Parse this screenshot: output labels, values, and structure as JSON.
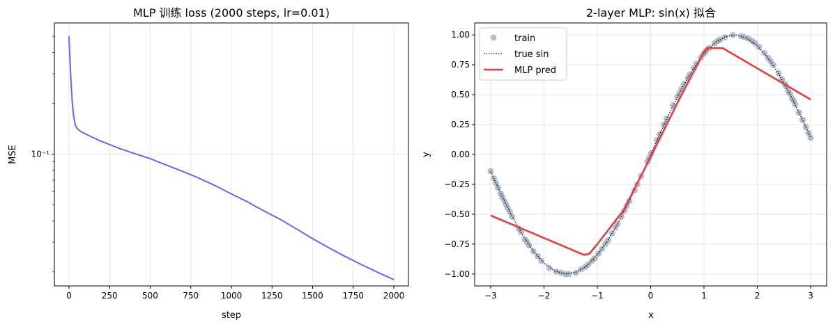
{
  "chart_data": [
    {
      "type": "line",
      "title": "MLP 训练 loss (2000 steps, lr=0.01)",
      "xlabel": "step",
      "ylabel": "MSE",
      "yscale": "log",
      "xlim": [
        -90,
        2090
      ],
      "ylim": [
        0.0165,
        0.6
      ],
      "xticks": [
        0,
        250,
        500,
        750,
        1000,
        1250,
        1500,
        1750,
        2000
      ],
      "ytick_labels": [
        {
          "value": 0.1,
          "label": "10⁻¹"
        }
      ],
      "grid": true,
      "color": "#6366f1",
      "series": [
        {
          "x": [
            0,
            5,
            10,
            15,
            20,
            25,
            30,
            35,
            40,
            50,
            60,
            70,
            80,
            100,
            150,
            200,
            250,
            300,
            400,
            500,
            600,
            700,
            800,
            900,
            1000,
            1100,
            1200,
            1300,
            1400,
            1500,
            1600,
            1700,
            1800,
            1900,
            2000
          ],
          "y": [
            0.5,
            0.38,
            0.3,
            0.245,
            0.205,
            0.18,
            0.165,
            0.155,
            0.148,
            0.142,
            0.139,
            0.137,
            0.135,
            0.132,
            0.125,
            0.119,
            0.114,
            0.109,
            0.101,
            0.094,
            0.086,
            0.079,
            0.072,
            0.065,
            0.058,
            0.052,
            0.046,
            0.041,
            0.036,
            0.0315,
            0.0278,
            0.0247,
            0.0221,
            0.0199,
            0.018
          ]
        }
      ]
    },
    {
      "type": "scatter+line",
      "title": "2-layer MLP: sin(x) 拟合",
      "xlabel": "x",
      "ylabel": "y",
      "xlim": [
        -3.3,
        3.3
      ],
      "ylim": [
        -1.1,
        1.1
      ],
      "xticks": [
        -3,
        -2,
        -1,
        0,
        1,
        2,
        3
      ],
      "yticks": [
        -1.0,
        -0.75,
        -0.5,
        -0.25,
        0.0,
        0.25,
        0.5,
        0.75,
        1.0
      ],
      "grid": true,
      "legend_position": "upper-left",
      "series": [
        {
          "name": "train",
          "kind": "scatter",
          "color": "#94a3b8",
          "x": [
            -3.0,
            -2.94,
            -2.9,
            -2.86,
            -2.81,
            -2.78,
            -2.74,
            -2.71,
            -2.68,
            -2.64,
            -2.6,
            -2.47,
            -2.43,
            -2.36,
            -2.32,
            -2.28,
            -2.2,
            -2.12,
            -2.05,
            -1.9,
            -1.77,
            -1.68,
            -1.6,
            -1.53,
            -1.4,
            -1.3,
            -1.22,
            -1.17,
            -1.1,
            -1.05,
            -0.98,
            -0.91,
            -0.85,
            -0.8,
            -0.72,
            -0.66,
            -0.62,
            -0.55,
            -0.49,
            -0.45,
            -0.4,
            -0.3,
            -0.25,
            -0.18,
            -0.06,
            -0.03,
            0.01,
            0.12,
            0.17,
            0.25,
            0.3,
            0.42,
            0.5,
            0.54,
            0.58,
            0.63,
            0.7,
            0.74,
            0.81,
            0.86,
            0.94,
            0.99,
            1.03,
            1.1,
            1.2,
            1.26,
            1.3,
            1.39,
            1.54,
            1.7,
            1.76,
            1.83,
            1.9,
            1.96,
            2.03,
            2.13,
            2.2,
            2.25,
            2.3,
            2.4,
            2.46,
            2.52,
            2.54,
            2.58,
            2.61,
            2.65,
            2.68,
            2.71,
            2.78,
            2.85,
            2.91,
            2.96,
            3.0
          ],
          "y": [
            -0.14,
            -0.2,
            -0.24,
            -0.28,
            -0.33,
            -0.36,
            -0.39,
            -0.42,
            -0.45,
            -0.48,
            -0.52,
            -0.62,
            -0.65,
            -0.71,
            -0.73,
            -0.76,
            -0.81,
            -0.85,
            -0.89,
            -0.95,
            -0.98,
            -0.99,
            -1.0,
            -1.0,
            -0.99,
            -0.96,
            -0.94,
            -0.92,
            -0.89,
            -0.87,
            -0.83,
            -0.79,
            -0.75,
            -0.72,
            -0.66,
            -0.61,
            -0.58,
            -0.52,
            -0.47,
            -0.43,
            -0.39,
            -0.3,
            -0.25,
            -0.18,
            -0.06,
            -0.03,
            0.01,
            0.12,
            0.17,
            0.25,
            0.3,
            0.41,
            0.48,
            0.51,
            0.55,
            0.59,
            0.64,
            0.67,
            0.72,
            0.76,
            0.81,
            0.84,
            0.86,
            0.89,
            0.93,
            0.95,
            0.96,
            0.98,
            1.0,
            0.99,
            0.98,
            0.97,
            0.95,
            0.93,
            0.9,
            0.85,
            0.81,
            0.78,
            0.75,
            0.68,
            0.63,
            0.59,
            0.57,
            0.53,
            0.51,
            0.47,
            0.45,
            0.42,
            0.35,
            0.29,
            0.23,
            0.18,
            0.14
          ]
        },
        {
          "name": "true sin",
          "kind": "line",
          "style": "dotted",
          "color": "#000000",
          "x": [
            -3.0,
            -2.8,
            -2.6,
            -2.4,
            -2.2,
            -2.0,
            -1.8,
            -1.6,
            -1.4,
            -1.2,
            -1.0,
            -0.8,
            -0.6,
            -0.4,
            -0.2,
            0.0,
            0.2,
            0.4,
            0.6,
            0.8,
            1.0,
            1.2,
            1.4,
            1.6,
            1.8,
            2.0,
            2.2,
            2.4,
            2.6,
            2.8,
            3.0
          ],
          "y": [
            -0.141,
            -0.335,
            -0.516,
            -0.675,
            -0.808,
            -0.909,
            -0.974,
            -1.0,
            -0.985,
            -0.932,
            -0.841,
            -0.717,
            -0.565,
            -0.389,
            -0.199,
            0.0,
            0.199,
            0.389,
            0.565,
            0.717,
            0.841,
            0.932,
            0.985,
            1.0,
            0.974,
            0.909,
            0.808,
            0.675,
            0.516,
            0.335,
            0.141
          ]
        },
        {
          "name": "MLP pred",
          "kind": "line",
          "color": "#e53e3e",
          "x": [
            -3.0,
            -1.25,
            -1.15,
            -1.0,
            -0.5,
            0.0,
            0.5,
            1.0,
            1.05,
            1.35,
            3.0
          ],
          "y": [
            -0.51,
            -0.84,
            -0.83,
            -0.75,
            -0.46,
            -0.02,
            0.43,
            0.86,
            0.89,
            0.89,
            0.46
          ]
        }
      ]
    }
  ]
}
